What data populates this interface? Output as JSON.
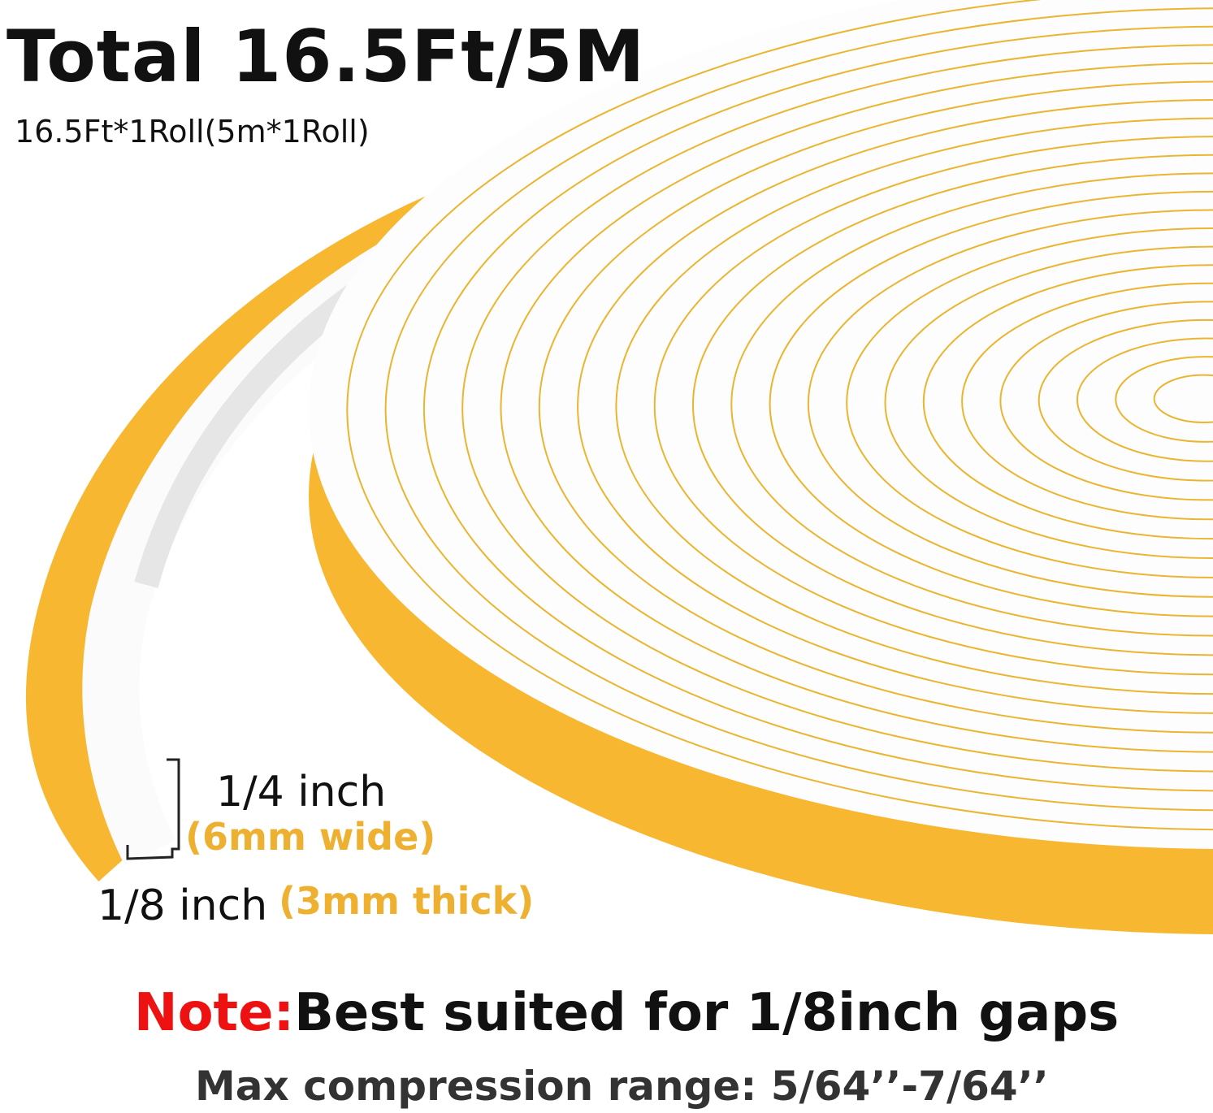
{
  "title": "Total 16.5Ft/5M",
  "subtitle": "16.5Ft*1Roll(5m*1Roll)",
  "width_label": "1/4 inch",
  "width_metric": "(6mm wide)",
  "thickness_label": "1/8 inch",
  "thickness_metric": "(3mm thick)",
  "note_prefix": "Note:",
  "note_text": "Best suited for 1/8inch gaps",
  "compression": "Max compression range: 5/64’’-7/64’’",
  "colors": {
    "foam": "#ffffff",
    "adhesive": "#f7b731",
    "note": "#ee1111",
    "metric": "#eeb030"
  }
}
